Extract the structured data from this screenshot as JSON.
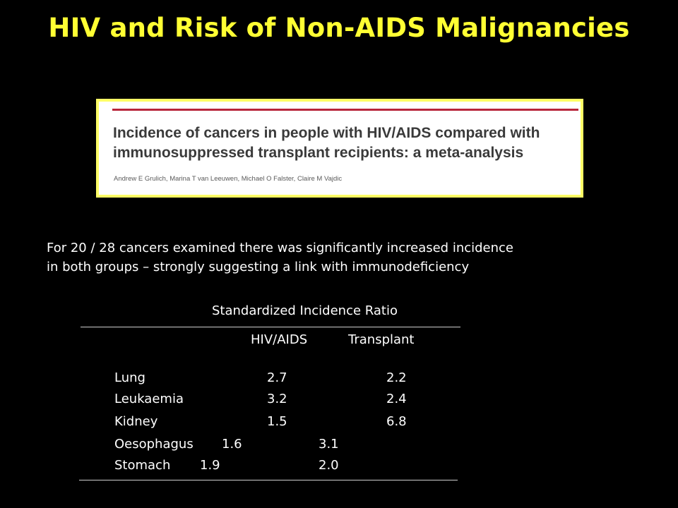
{
  "slide": {
    "title": "HIV and Risk of Non-AIDS Malignancies"
  },
  "paper": {
    "title_line1": "Incidence of cancers in people with HIV/AIDS compared with",
    "title_line2": "immunosuppressed transplant recipients: a meta-analysis",
    "authors": "Andrew E Grulich, Marina T van Leeuwen, Michael O Falster, Claire M Vajdic",
    "accent_color": "#b8263a",
    "border_color": "#ffff66"
  },
  "summary": {
    "line1": "For 20 / 28 cancers examined there was significantly increased incidence",
    "line2": "in both groups – strongly suggesting a link with immunodeficiency"
  },
  "table": {
    "header": "Standardized Incidence Ratio",
    "columns": [
      "HIV/AIDS",
      "Transplant"
    ],
    "rows": [
      {
        "cancer": "Lung",
        "hiv": "2.7",
        "transplant": "2.2"
      },
      {
        "cancer": "Leukaemia",
        "hiv": "3.2",
        "transplant": "2.4"
      },
      {
        "cancer": "Kidney",
        "hiv": "1.5",
        "transplant": "6.8"
      },
      {
        "cancer": "Oesophagus",
        "hiv": "1.6",
        "transplant": "3.1"
      },
      {
        "cancer": "Stomach",
        "hiv": "1.9",
        "transplant": "2.0"
      }
    ]
  },
  "colors": {
    "background": "#000000",
    "title": "#ffff33",
    "text": "#ffffff"
  }
}
